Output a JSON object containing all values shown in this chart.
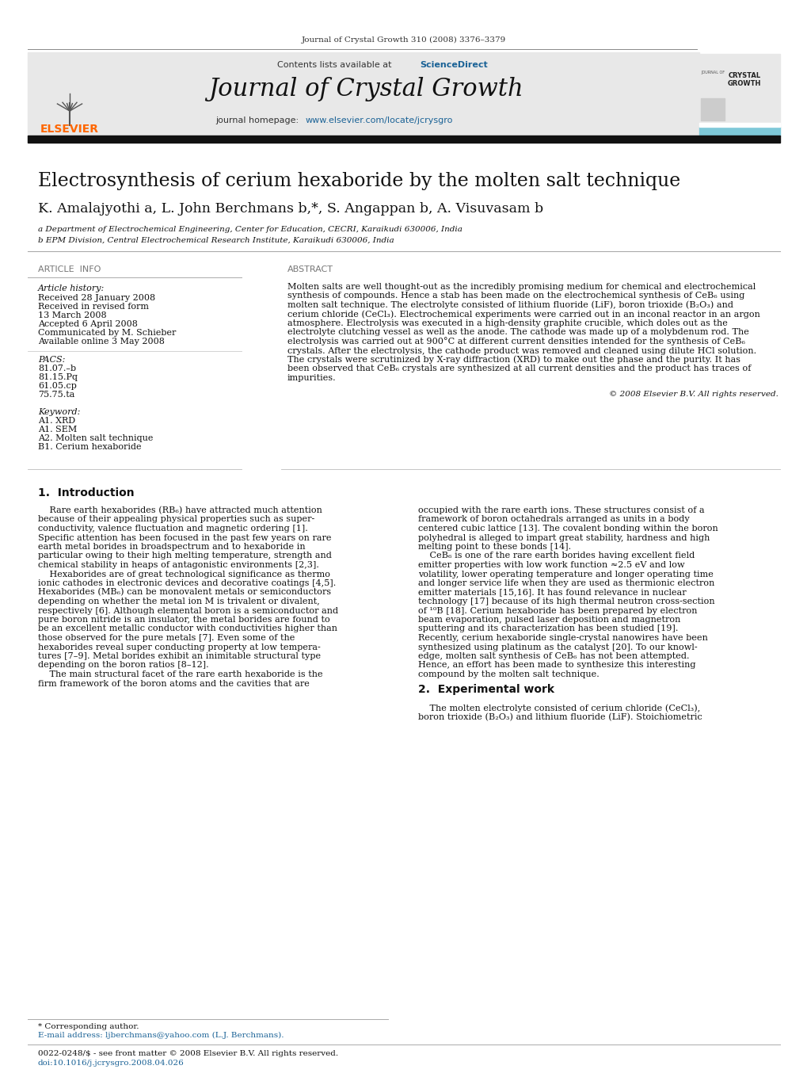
{
  "page_width": 10.2,
  "page_height": 13.59,
  "background_color": "#ffffff",
  "journal_ref": "Journal of Crystal Growth 310 (2008) 3376–3379",
  "journal_title": "Journal of Crystal Growth",
  "elsevier_color": "#FF6600",
  "sciencedirect_color": "#1a6296",
  "homepage_color": "#1a6296",
  "header_bg": "#e8e8e8",
  "blue_bar_color": "#7ec8d8",
  "article_title": "Electrosynthesis of cerium hexaboride by the molten salt technique",
  "authors": "K. Amalajyothi a, L. John Berchmans b,*, S. Angappan b, A. Visuvasam b",
  "affiliation_a": "a Department of Electrochemical Engineering, Center for Education, CECRI, Karaikudi 630006, India",
  "affiliation_b": "b EPM Division, Central Electrochemical Research Institute, Karaikudi 630006, India",
  "article_info_label": "ARTICLE  INFO",
  "abstract_label": "ABSTRACT",
  "article_history_label": "Article history:",
  "received_1": "Received 28 January 2008",
  "received_2": "Received in revised form",
  "received_2b": "13 March 2008",
  "accepted": "Accepted 6 April 2008",
  "communicated": "Communicated by M. Schieber",
  "available": "Available online 3 May 2008",
  "pacs_label": "PACS:",
  "pacs_1": "81.07.–b",
  "pacs_2": "81.15.Pq",
  "pacs_3": "61.05.cp",
  "pacs_4": "75.75.ta",
  "keyword_label": "Keyword:",
  "kw_1": "A1. XRD",
  "kw_2": "A1. SEM",
  "kw_3": "A2. Molten salt technique",
  "kw_4": "B1. Cerium hexaboride",
  "copyright": "© 2008 Elsevier B.V. All rights reserved.",
  "intro_label": "1.  Introduction",
  "exp_label": "2.  Experimental work",
  "footer_left": "* Corresponding author.",
  "footer_email": "E-mail address: ljberchmans@yahoo.com (L.J. Berchmans).",
  "footer_copy": "0022-0248/$ - see front matter © 2008 Elsevier B.V. All rights reserved.",
  "footer_doi": "doi:10.1016/j.jcrysgro.2008.04.026"
}
